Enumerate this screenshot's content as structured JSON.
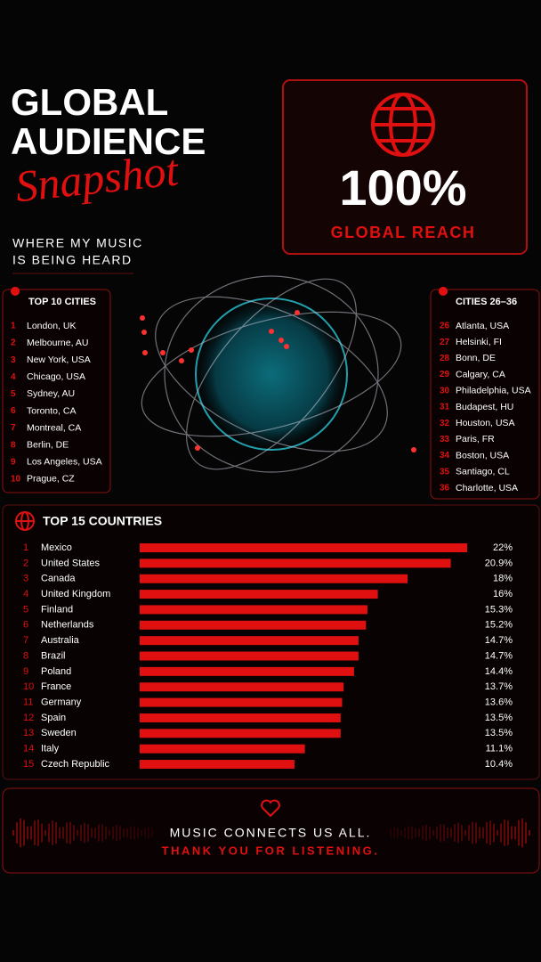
{
  "header": {
    "title_line1": "GLOBAL",
    "title_line2": "AUDIENCE",
    "title_script": "Snapshot",
    "subtitle_line1": "WHERE MY MUSIC",
    "subtitle_line2": "IS BEING HEARD"
  },
  "reach": {
    "value": "100%",
    "label": "GLOBAL REACH"
  },
  "top_cities": {
    "title": "TOP 10 CITIES",
    "rows": [
      {
        "rank": 1,
        "name": "London, UK"
      },
      {
        "rank": 2,
        "name": "Melbourne, AU"
      },
      {
        "rank": 3,
        "name": "New York, USA"
      },
      {
        "rank": 4,
        "name": "Chicago, USA"
      },
      {
        "rank": 5,
        "name": "Sydney, AU"
      },
      {
        "rank": 6,
        "name": "Toronto, CA"
      },
      {
        "rank": 7,
        "name": "Montreal, CA"
      },
      {
        "rank": 8,
        "name": "Berlin, DE"
      },
      {
        "rank": 9,
        "name": "Los Angeles, USA"
      },
      {
        "rank": 10,
        "name": "Prague, CZ"
      }
    ]
  },
  "more_cities": {
    "title": "CITIES 26–36",
    "rows": [
      {
        "rank": 26,
        "name": "Atlanta, USA"
      },
      {
        "rank": 27,
        "name": "Helsinki, FI"
      },
      {
        "rank": 28,
        "name": "Bonn, DE"
      },
      {
        "rank": 29,
        "name": "Calgary, CA"
      },
      {
        "rank": 30,
        "name": "Philadelphia, USA"
      },
      {
        "rank": 31,
        "name": "Budapest, HU"
      },
      {
        "rank": 32,
        "name": "Houston, USA"
      },
      {
        "rank": 33,
        "name": "Paris, FR"
      },
      {
        "rank": 34,
        "name": "Boston, USA"
      },
      {
        "rank": 35,
        "name": "Santiago, CL"
      },
      {
        "rank": 36,
        "name": "Charlotte, USA"
      }
    ]
  },
  "chart_data": {
    "type": "bar",
    "orientation": "horizontal",
    "title": "TOP 15 COUNTRIES",
    "color": "#e01010",
    "ranks": [
      1,
      2,
      3,
      4,
      5,
      6,
      7,
      8,
      9,
      10,
      11,
      12,
      13,
      14,
      15
    ],
    "categories": [
      "Mexico",
      "United States",
      "Canada",
      "United Kingdom",
      "Finland",
      "Netherlands",
      "Australia",
      "Brazil",
      "Poland",
      "France",
      "Germany",
      "Spain",
      "Sweden",
      "Italy",
      "Czech Republic"
    ],
    "values": [
      22,
      20.9,
      18,
      16,
      15.3,
      15.2,
      14.7,
      14.7,
      14.4,
      13.7,
      13.6,
      13.5,
      13.5,
      11.1,
      10.4
    ],
    "value_labels": [
      "22%",
      "20.9%",
      "18%",
      "16%",
      "15.3%",
      "15.2%",
      "14.7%",
      "14.7%",
      "14.4%",
      "13.7%",
      "13.6%",
      "13.5%",
      "13.5%",
      "11.1%",
      "10.4%"
    ]
  },
  "footer": {
    "line1": "MUSIC CONNECTS US ALL.",
    "line2": "THANK YOU FOR LISTENING."
  }
}
